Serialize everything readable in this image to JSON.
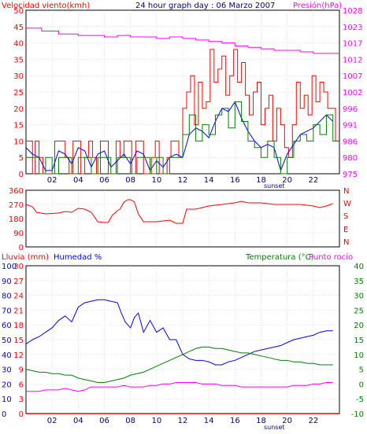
{
  "chart_data": [
    {
      "type": "line",
      "title": "24 hour graph day : 06 Marzo 2007",
      "ylabel": "Velocidad viento(kmh)",
      "y2label": "Presión(hPa)",
      "ylim": [
        0,
        50
      ],
      "y2lim": [
        975,
        1030
      ],
      "xlim": [
        0,
        24
      ],
      "yticks": [
        0,
        5,
        10,
        15,
        20,
        25,
        30,
        35,
        40,
        45,
        50
      ],
      "y2ticks": [
        975,
        980,
        986,
        991,
        996,
        1002,
        1007,
        1012,
        1017,
        1023,
        1028
      ],
      "xticks": [
        "02",
        "04",
        "06",
        "08",
        "10",
        "12",
        "14",
        "16",
        "18",
        "20",
        "22"
      ],
      "annotation": "sunset",
      "annotation_x": 17,
      "grid": true,
      "colors": {
        "gust": "#ff0000",
        "average": "#0000ff",
        "speed": "#008000",
        "pressure": "#ff00ff",
        "text": "#ff0000",
        "title": "#000080",
        "axis2": "#ff00ff"
      },
      "series": [
        {
          "color": "#ff0000",
          "axis": "left",
          "style": "step",
          "x": [
            0,
            0.5,
            0.7,
            1.0,
            1.3,
            1.6,
            1.9,
            2.2,
            2.6,
            3.0,
            3.3,
            3.6,
            3.9,
            4.2,
            4.5,
            4.8,
            5.1,
            5.4,
            5.7,
            6.0,
            6.3,
            6.6,
            6.9,
            7.2,
            7.5,
            7.8,
            8.1,
            8.4,
            8.7,
            9.0,
            9.3,
            9.6,
            9.9,
            10.2,
            10.5,
            10.8,
            11.1,
            11.4,
            11.7,
            12.0,
            12.3,
            12.6,
            12.9,
            13.2,
            13.5,
            13.8,
            14.1,
            14.4,
            14.7,
            15.0,
            15.3,
            15.6,
            15.9,
            16.2,
            16.5,
            16.8,
            17.1,
            17.4,
            17.7,
            18.0,
            18.3,
            18.6,
            18.9,
            19.2,
            19.5,
            19.8,
            20.1,
            20.4,
            20.7,
            21.0,
            21.3,
            21.6,
            21.9,
            22.2,
            22.5,
            22.8,
            23.1,
            23.4,
            23.7
          ],
          "y": [
            10,
            0,
            10,
            5,
            0,
            0,
            0,
            10,
            10,
            5,
            0,
            10,
            10,
            0,
            5,
            10,
            5,
            0,
            10,
            10,
            0,
            0,
            10,
            5,
            10,
            10,
            0,
            10,
            10,
            0,
            0,
            5,
            10,
            0,
            0,
            5,
            10,
            10,
            5,
            20,
            25,
            30,
            15,
            28,
            20,
            22,
            38,
            28,
            32,
            36,
            24,
            30,
            38,
            28,
            34,
            24,
            18,
            25,
            28,
            15,
            20,
            24,
            10,
            20,
            15,
            8,
            5,
            15,
            28,
            20,
            24,
            18,
            30,
            22,
            28,
            25,
            20,
            20,
            10
          ]
        },
        {
          "color": "#0000ff",
          "axis": "left",
          "style": "line",
          "x": [
            0,
            0.5,
            1.0,
            1.5,
            2.0,
            2.5,
            3.0,
            3.5,
            4.0,
            4.5,
            5.0,
            5.5,
            6.0,
            6.5,
            7.0,
            7.5,
            8.0,
            8.5,
            9.0,
            9.5,
            10.0,
            10.5,
            11.0,
            11.5,
            12.0,
            12.5,
            13.0,
            13.5,
            14.0,
            14.5,
            15.0,
            15.5,
            16.0,
            16.5,
            17.0,
            17.5,
            18.0,
            18.5,
            19.0,
            19.5,
            20.0,
            20.5,
            21.0,
            21.5,
            22.0,
            22.5,
            23.0,
            23.5
          ],
          "y": [
            8,
            6,
            5,
            1,
            1,
            7,
            6,
            3,
            8,
            7,
            2,
            6,
            7,
            2,
            4,
            6,
            3,
            7,
            6,
            1,
            4,
            2,
            5,
            6,
            5,
            12,
            14,
            13,
            11,
            16,
            20,
            19,
            22,
            17,
            13,
            10,
            8,
            9,
            8,
            1,
            6,
            9,
            12,
            13,
            14,
            16,
            18,
            16
          ]
        },
        {
          "color": "#008000",
          "axis": "left",
          "style": "step",
          "x": [
            0,
            0.5,
            1.0,
            1.5,
            2.0,
            2.5,
            3.0,
            3.5,
            4.0,
            4.5,
            5.0,
            5.5,
            6.0,
            6.5,
            7.0,
            7.5,
            8.0,
            8.5,
            9.0,
            9.5,
            10.0,
            10.5,
            11.0,
            11.5,
            12.0,
            12.5,
            13.0,
            13.5,
            14.0,
            14.5,
            15.0,
            15.5,
            16.0,
            16.5,
            17.0,
            17.5,
            18.0,
            18.5,
            19.0,
            19.5,
            20.0,
            20.5,
            21.0,
            21.5,
            22.0,
            22.5,
            23.0,
            23.5
          ],
          "y": [
            5,
            5,
            0,
            5,
            0,
            5,
            5,
            0,
            5,
            5,
            0,
            5,
            5,
            0,
            5,
            5,
            0,
            5,
            5,
            0,
            5,
            0,
            5,
            5,
            12,
            18,
            10,
            15,
            12,
            18,
            20,
            14,
            22,
            16,
            10,
            8,
            5,
            10,
            5,
            0,
            5,
            10,
            12,
            10,
            15,
            12,
            18,
            10
          ]
        },
        {
          "color": "#ff00ff",
          "axis": "right",
          "style": "step",
          "x": [
            0,
            1.2,
            2.5,
            4.0,
            6.0,
            7.0,
            8.0,
            9.0,
            10.0,
            11.0,
            12.0,
            13.0,
            14.0,
            15.0,
            16.0,
            17.0,
            18.0,
            19.0,
            20.0,
            21.0,
            22.0,
            23.0,
            24.0
          ],
          "y": [
            1024,
            1023,
            1022,
            1021.5,
            1021,
            1021.5,
            1021,
            1021,
            1020.5,
            1021,
            1020.5,
            1020,
            1019.5,
            1019,
            1018,
            1017.5,
            1017,
            1016.5,
            1016.5,
            1016,
            1015.5,
            1015.5,
            1015.5
          ]
        }
      ]
    },
    {
      "type": "line",
      "ylim": [
        0,
        360
      ],
      "yticks": [
        0,
        90,
        180,
        270,
        360
      ],
      "compass": [
        "N",
        "W",
        "S",
        "E",
        "N"
      ],
      "xlim": [
        0,
        24
      ],
      "grid": true,
      "colors": {
        "line": "#ff0000",
        "text": "#ff0000"
      },
      "series": [
        {
          "color": "#ff0000",
          "x": [
            0,
            0.5,
            0.8,
            1.5,
            2.5,
            3.0,
            3.5,
            4.0,
            4.5,
            5.0,
            5.5,
            6.0,
            6.3,
            6.6,
            7.0,
            7.2,
            7.5,
            7.8,
            8.0,
            8.3,
            8.6,
            9.0,
            10.0,
            10.5,
            11.0,
            11.5,
            12.0,
            12.3,
            13.0,
            14.0,
            15.0,
            16.0,
            16.5,
            17.0,
            18.0,
            19.0,
            20.0,
            21.0,
            22.0,
            22.5,
            23.0,
            23.5
          ],
          "y": [
            270,
            255,
            220,
            210,
            215,
            225,
            220,
            245,
            240,
            220,
            160,
            155,
            155,
            200,
            230,
            240,
            285,
            300,
            300,
            285,
            210,
            160,
            160,
            165,
            170,
            150,
            150,
            240,
            240,
            260,
            270,
            280,
            290,
            280,
            280,
            270,
            270,
            270,
            260,
            250,
            260,
            275
          ]
        }
      ]
    },
    {
      "type": "line",
      "ylabels": [
        "Lluvia (mm)",
        "Humedad %"
      ],
      "y2labels": [
        "Temperatura (°C)",
        "Punto rocío"
      ],
      "y_rain_ticks": [
        0,
        3,
        6,
        9,
        12,
        15,
        18,
        21,
        24,
        27,
        30
      ],
      "y_hum_ticks": [
        0,
        10,
        20,
        30,
        40,
        50,
        60,
        70,
        80,
        90,
        100
      ],
      "y_temp_ticks": [
        -10,
        -5,
        0,
        5,
        10,
        15,
        20,
        25,
        30,
        35,
        40
      ],
      "xticks": [
        "02",
        "04",
        "06",
        "08",
        "10",
        "12",
        "14",
        "16",
        "18",
        "20",
        "22"
      ],
      "annotation": "sunset",
      "xlim": [
        0,
        24
      ],
      "grid": true,
      "colors": {
        "rain": "#ff0000",
        "humidity": "#0000ff",
        "temperature": "#008000",
        "dewpoint": "#ff00ff"
      },
      "series": [
        {
          "color": "#0000ff",
          "axis": "humidity",
          "x": [
            0,
            0.5,
            1.0,
            1.5,
            2.0,
            2.5,
            3.0,
            3.5,
            4.0,
            4.5,
            5.0,
            5.5,
            6.0,
            6.5,
            7.0,
            7.3,
            7.6,
            8.0,
            8.3,
            8.6,
            9.0,
            9.5,
            10.0,
            10.5,
            11.0,
            11.5,
            12.0,
            12.5,
            13.0,
            13.5,
            14.0,
            14.5,
            15.0,
            15.5,
            16.0,
            16.5,
            17.0,
            17.5,
            18.0,
            18.5,
            19.0,
            19.5,
            20.0,
            20.5,
            21.0,
            21.5,
            22.0,
            22.5,
            23.0,
            23.5
          ],
          "y": [
            47,
            50,
            52,
            55,
            58,
            63,
            66,
            62,
            72,
            75,
            76,
            77,
            77,
            76,
            75,
            68,
            62,
            58,
            65,
            68,
            55,
            63,
            55,
            58,
            50,
            50,
            40,
            37,
            36,
            36,
            35,
            33,
            33,
            35,
            36,
            38,
            40,
            42,
            43,
            44,
            45,
            46,
            48,
            50,
            51,
            52,
            53,
            55,
            56,
            56
          ]
        },
        {
          "color": "#008000",
          "axis": "temperature",
          "x": [
            0,
            0.5,
            1.0,
            1.5,
            2.0,
            2.5,
            3.0,
            3.5,
            4.0,
            4.5,
            5.0,
            5.5,
            6.0,
            6.5,
            7.0,
            7.5,
            8.0,
            8.5,
            9.0,
            9.5,
            10.0,
            10.5,
            11.0,
            11.5,
            12.0,
            12.5,
            13.0,
            13.5,
            14.0,
            14.5,
            15.0,
            15.5,
            16.0,
            16.5,
            17.0,
            17.5,
            18.0,
            18.5,
            19.0,
            19.5,
            20.0,
            20.5,
            21.0,
            21.5,
            22.0,
            22.5,
            23.0,
            23.5
          ],
          "y": [
            5,
            4.5,
            4,
            4,
            3.5,
            3.5,
            3,
            3,
            2,
            1.5,
            1,
            0.5,
            0.5,
            1,
            1.5,
            2,
            3,
            3.5,
            4,
            5,
            6,
            7,
            8,
            9,
            10,
            11,
            12,
            12.5,
            12.5,
            12,
            12,
            11.5,
            11,
            10.5,
            10.5,
            10,
            9.5,
            9,
            8.5,
            8,
            8,
            7.5,
            7.5,
            7,
            7,
            6.5,
            6.5,
            6.5
          ]
        },
        {
          "color": "#ff00ff",
          "axis": "temperature",
          "x": [
            0,
            0.5,
            1.0,
            1.5,
            2.0,
            2.5,
            3.0,
            3.5,
            4.0,
            4.5,
            5.0,
            5.5,
            6.0,
            6.5,
            7.0,
            7.5,
            8.0,
            8.5,
            9.0,
            9.5,
            10.0,
            10.5,
            11.0,
            11.5,
            12.0,
            12.5,
            13.0,
            13.5,
            14.0,
            14.5,
            15.0,
            15.5,
            16.0,
            16.5,
            17.0,
            17.5,
            18.0,
            18.5,
            19.0,
            19.5,
            20.0,
            20.5,
            21.0,
            21.5,
            22.0,
            22.5,
            23.0,
            23.5
          ],
          "y": [
            -2.5,
            -2.5,
            -2.5,
            -2,
            -2,
            -2,
            -1.5,
            -2,
            -2.5,
            -2,
            -1,
            -1,
            -1,
            -1,
            -1,
            -0.5,
            -1,
            -1,
            -1,
            -0.5,
            -0.5,
            0,
            0,
            0.5,
            0.5,
            0.5,
            0.5,
            0,
            0,
            0,
            -0.5,
            -0.5,
            -0.5,
            -1,
            -1,
            -1,
            -1,
            -1,
            -1,
            -1,
            -1,
            -0.5,
            -0.5,
            -0.5,
            0,
            0,
            0.5,
            0.5
          ]
        },
        {
          "color": "#ff0000",
          "axis": "rain",
          "x": [
            0,
            24
          ],
          "y": [
            0,
            0
          ]
        }
      ]
    }
  ],
  "labels": {
    "top_left": "Velocidad viento(kmh)",
    "top_title": "24 hour graph day : 06 Marzo 2007",
    "top_right": "Presión(hPa)",
    "sunset1": "sunset",
    "sunset2": "sunset",
    "rain": "Lluvia (mm)",
    "humidity": "Humedad %",
    "temperature": "Temperatura (°C)",
    "dewpoint": "Punto rocío"
  }
}
